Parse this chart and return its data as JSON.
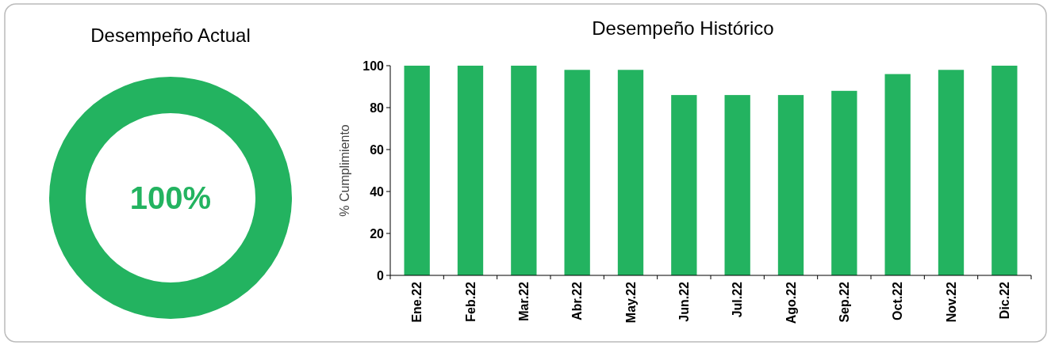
{
  "chart_data": [
    {
      "type": "donut",
      "title": "Desempeño Actual",
      "categories": [
        null
      ],
      "values": [
        100
      ],
      "colors": [
        "#23b360"
      ],
      "value_labels": [
        "100%"
      ]
    },
    {
      "type": "bar",
      "title": "Desempeño Histórico",
      "ylabel": "% Cumplimiento",
      "categories": [
        "Ene.22",
        "Feb.22",
        "Mar.22",
        "Abr.22",
        "May.22",
        "Jun.22",
        "Jul.22",
        "Ago.22",
        "Sep.22",
        "Oct.22",
        "Nov.22",
        "Dic.22"
      ],
      "series": [
        {
          "color": "#23b360",
          "values": [
            100,
            100,
            100,
            98,
            98,
            86,
            86,
            86,
            88,
            96,
            98,
            100
          ]
        }
      ],
      "ylim": [
        0,
        100
      ],
      "yticks": [
        0,
        20,
        40,
        60,
        80,
        100
      ],
      "grid": false
    }
  ]
}
